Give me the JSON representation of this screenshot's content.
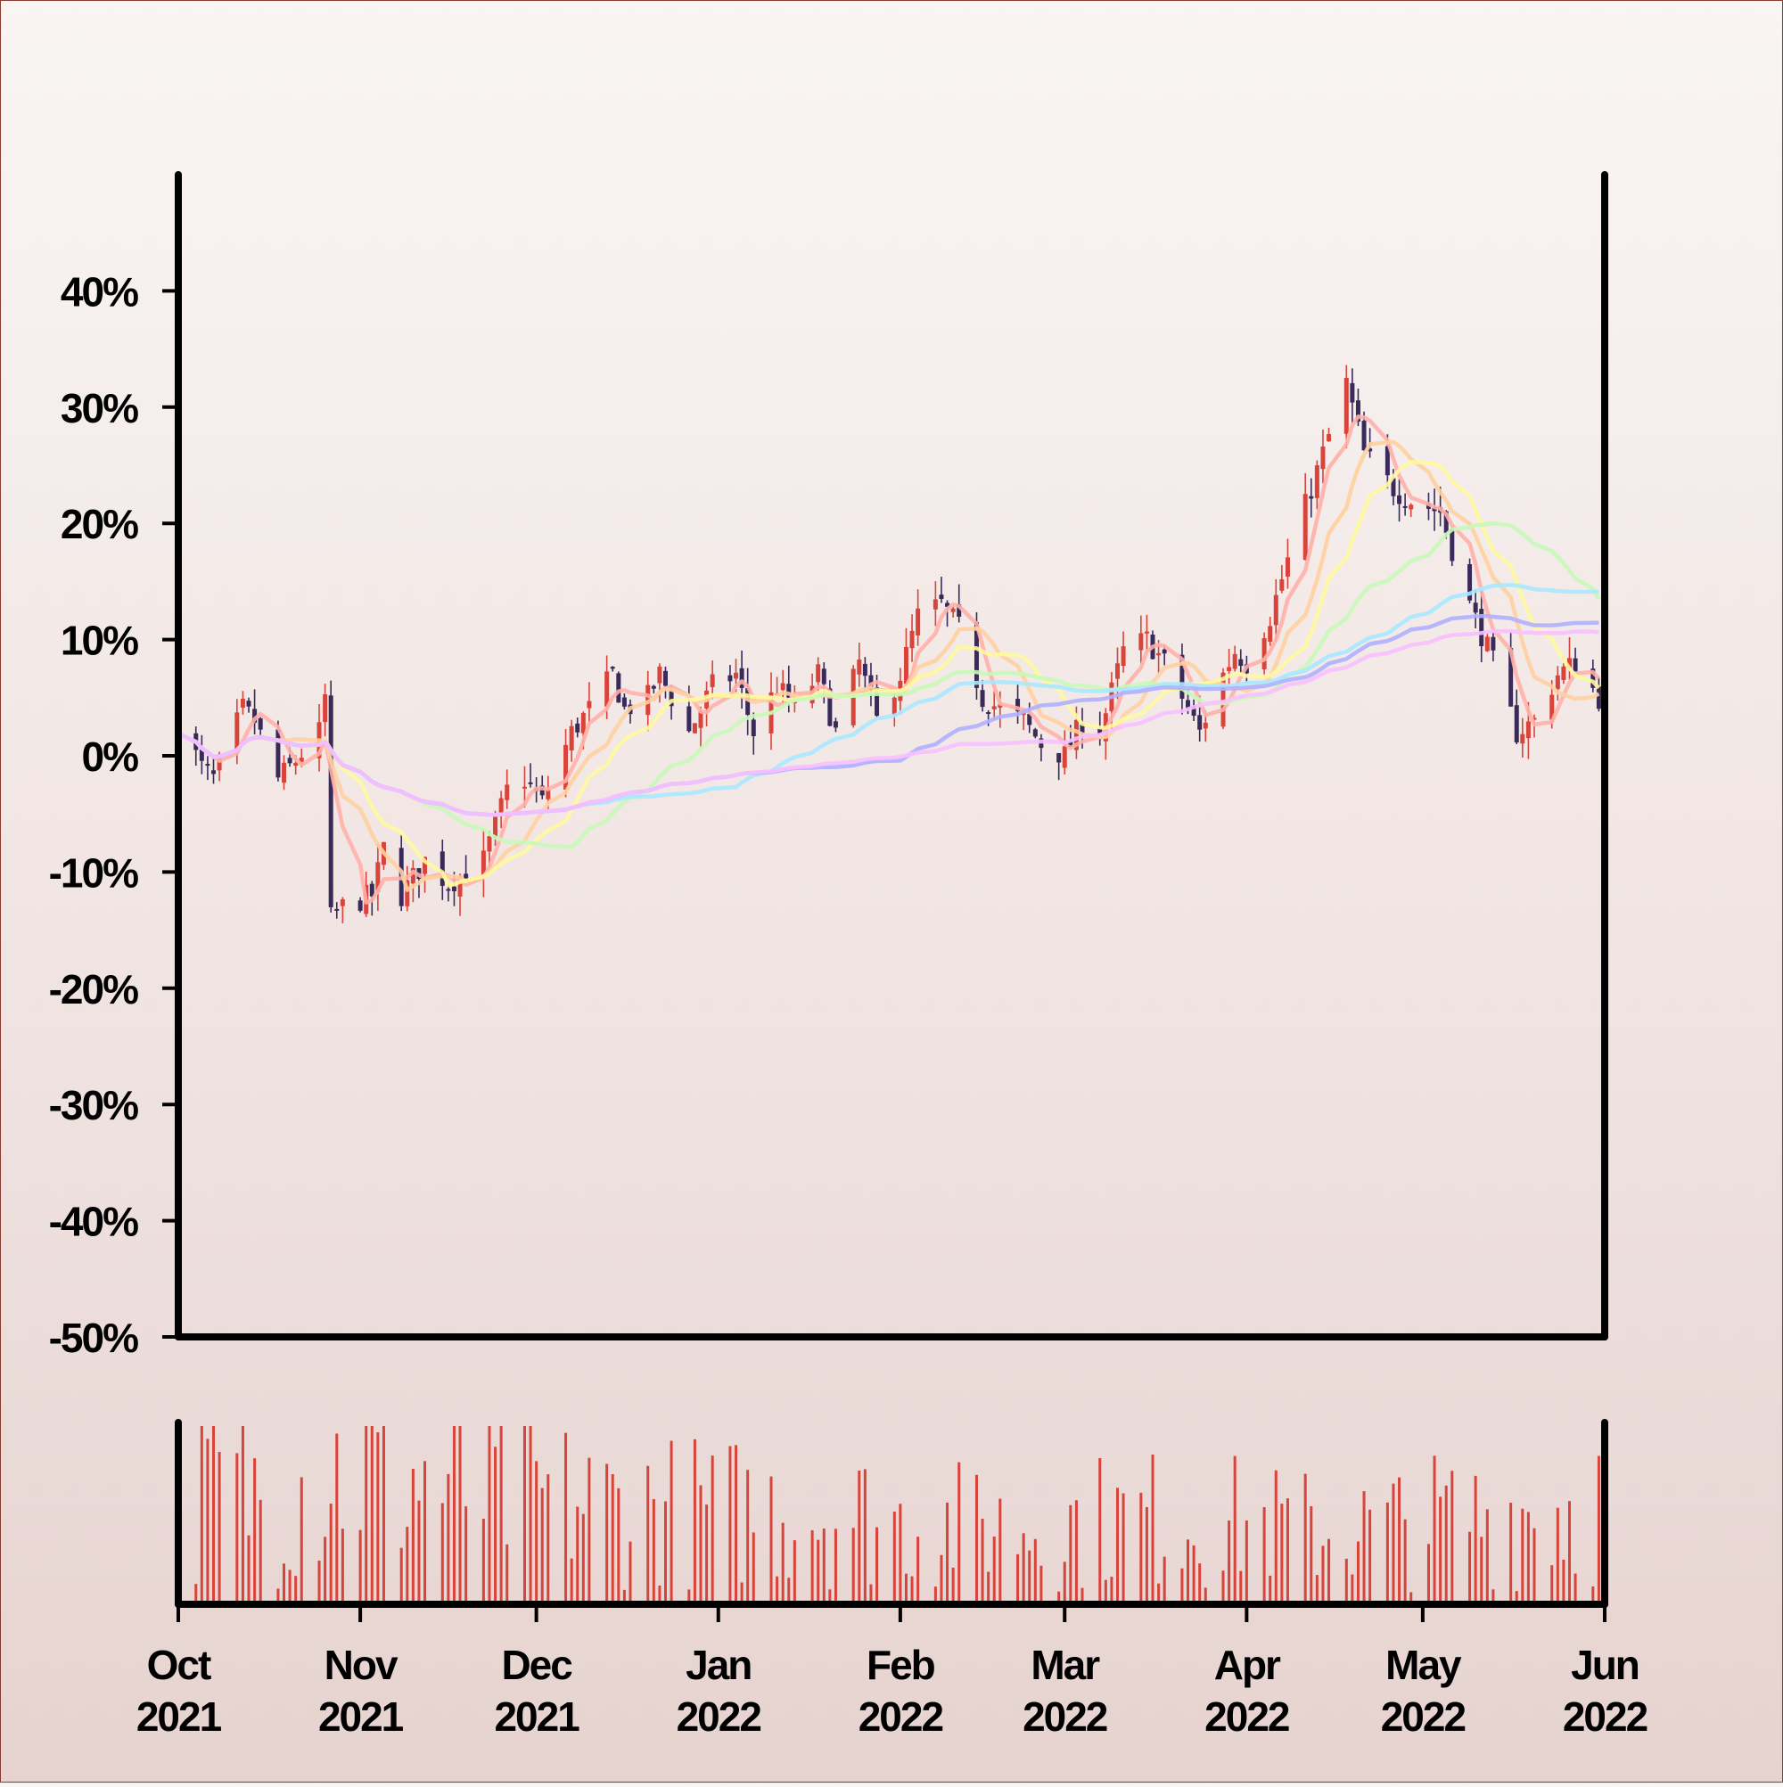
{
  "colors": {
    "up": "#d8443a",
    "down": "#3a2a5a",
    "volume": "#d8443a",
    "axis": "#000000",
    "ma": [
      "#ffb0a8",
      "#ffd0a0",
      "#fff8a0",
      "#c8f8b8",
      "#a8e8ff",
      "#b0b0ff",
      "#f8c0ff"
    ]
  },
  "chart_data": {
    "type": "candlestick",
    "ylim": [
      -50,
      50
    ],
    "y_ticks": [
      "40%",
      "30%",
      "20%",
      "10%",
      "0%",
      "-10%",
      "-20%",
      "-30%",
      "-40%",
      "-50%"
    ],
    "y_tick_values": [
      40,
      30,
      20,
      10,
      0,
      -10,
      -20,
      -30,
      -40,
      -50
    ],
    "x_ticks": [
      {
        "month": "Oct",
        "year": "2021",
        "date": "2021-10-01"
      },
      {
        "month": "Nov",
        "year": "2021",
        "date": "2021-11-01"
      },
      {
        "month": "Dec",
        "year": "2021",
        "date": "2021-12-01"
      },
      {
        "month": "Jan",
        "year": "2022",
        "date": "2022-01-01"
      },
      {
        "month": "Feb",
        "year": "2022",
        "date": "2022-02-01"
      },
      {
        "month": "Mar",
        "year": "2022",
        "date": "2022-03-01"
      },
      {
        "month": "Apr",
        "year": "2022",
        "date": "2022-04-01"
      },
      {
        "month": "May",
        "year": "2022",
        "date": "2022-05-01"
      },
      {
        "month": "Jun",
        "year": "2022",
        "date": "2022-06-01"
      }
    ],
    "xlim": [
      "2021-10-01",
      "2022-06-01"
    ],
    "price_close_anchors": [
      [
        "2021-10-01",
        3
      ],
      [
        "2021-10-05",
        -1
      ],
      [
        "2021-10-07",
        -2
      ],
      [
        "2021-10-12",
        4
      ],
      [
        "2021-10-14",
        3
      ],
      [
        "2021-10-18",
        -2
      ],
      [
        "2021-10-20",
        -1
      ],
      [
        "2021-10-25",
        2
      ],
      [
        "2021-10-26",
        5
      ],
      [
        "2021-10-27",
        -14
      ],
      [
        "2021-10-29",
        -13
      ],
      [
        "2021-11-03",
        -12
      ],
      [
        "2021-11-05",
        -8
      ],
      [
        "2021-11-08",
        -12
      ],
      [
        "2021-11-12",
        -9
      ],
      [
        "2021-11-16",
        -11
      ],
      [
        "2021-11-22",
        -9
      ],
      [
        "2021-11-26",
        -3
      ],
      [
        "2021-11-29",
        -2
      ],
      [
        "2021-12-02",
        -4
      ],
      [
        "2021-12-07",
        2
      ],
      [
        "2021-12-10",
        4
      ],
      [
        "2021-12-14",
        7
      ],
      [
        "2021-12-16",
        4
      ],
      [
        "2021-12-20",
        5
      ],
      [
        "2021-12-22",
        7
      ],
      [
        "2021-12-27",
        2
      ],
      [
        "2021-12-31",
        6
      ],
      [
        "2022-01-04",
        7
      ],
      [
        "2022-01-07",
        2
      ],
      [
        "2022-01-11",
        6
      ],
      [
        "2022-01-14",
        4
      ],
      [
        "2022-01-18",
        7
      ],
      [
        "2022-01-21",
        2
      ],
      [
        "2022-01-25",
        8
      ],
      [
        "2022-01-28",
        3
      ],
      [
        "2022-02-01",
        7
      ],
      [
        "2022-02-04",
        12
      ],
      [
        "2022-02-08",
        13
      ],
      [
        "2022-02-11",
        11
      ],
      [
        "2022-02-15",
        5
      ],
      [
        "2022-02-18",
        4
      ],
      [
        "2022-02-22",
        3
      ],
      [
        "2022-02-25",
        1
      ],
      [
        "2022-03-01",
        0
      ],
      [
        "2022-03-04",
        3
      ],
      [
        "2022-03-07",
        2
      ],
      [
        "2022-03-11",
        9
      ],
      [
        "2022-03-15",
        10
      ],
      [
        "2022-03-18",
        8
      ],
      [
        "2022-03-22",
        4
      ],
      [
        "2022-03-24",
        2
      ],
      [
        "2022-03-28",
        7
      ],
      [
        "2022-03-30",
        9
      ],
      [
        "2022-04-01",
        8
      ],
      [
        "2022-04-05",
        12
      ],
      [
        "2022-04-10",
        20
      ],
      [
        "2022-04-14",
        26
      ],
      [
        "2022-04-18",
        32
      ],
      [
        "2022-04-21",
        26
      ],
      [
        "2022-04-26",
        23
      ],
      [
        "2022-04-29",
        22
      ],
      [
        "2022-05-04",
        21
      ],
      [
        "2022-05-09",
        13
      ],
      [
        "2022-05-13",
        8
      ],
      [
        "2022-05-17",
        2
      ],
      [
        "2022-05-20",
        3
      ],
      [
        "2022-05-24",
        7
      ],
      [
        "2022-05-27",
        8
      ],
      [
        "2022-05-31",
        5
      ]
    ],
    "moving_average_windows": [
      5,
      10,
      15,
      30,
      50,
      70,
      90
    ],
    "volume_anchors": [
      [
        "2021-10-01",
        62
      ],
      [
        "2021-10-15",
        55
      ],
      [
        "2021-10-29",
        68
      ],
      [
        "2021-11-15",
        60
      ],
      [
        "2021-11-30",
        52
      ],
      [
        "2021-12-15",
        48
      ],
      [
        "2022-01-01",
        45
      ],
      [
        "2022-01-15",
        48
      ],
      [
        "2022-02-01",
        40
      ],
      [
        "2022-02-15",
        38
      ],
      [
        "2022-03-01",
        40
      ],
      [
        "2022-03-15",
        42
      ],
      [
        "2022-04-01",
        40
      ],
      [
        "2022-04-15",
        35
      ],
      [
        "2022-05-01",
        40
      ],
      [
        "2022-05-15",
        45
      ],
      [
        "2022-05-31",
        50
      ]
    ]
  }
}
